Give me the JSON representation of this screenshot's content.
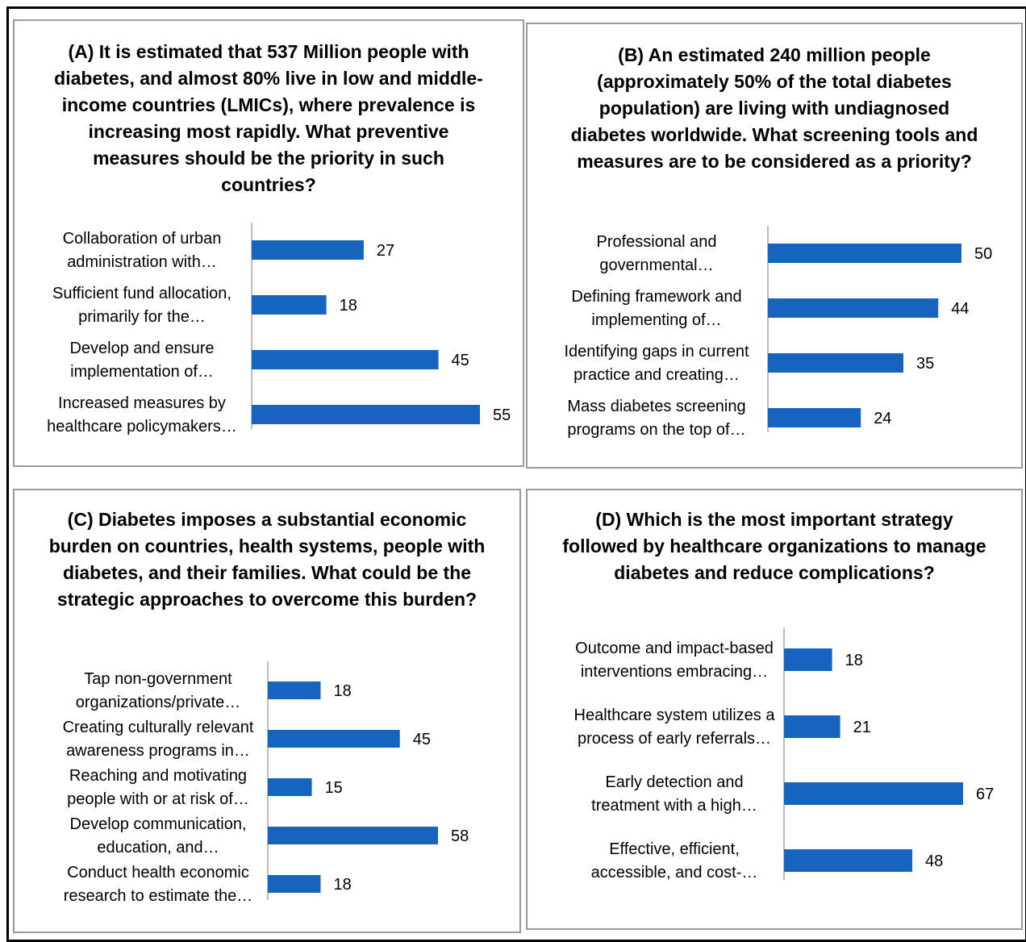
{
  "colors": {
    "bar": "#1565c0",
    "axis": "#bdbdbd",
    "border": "#000000",
    "panel_border": "#9a9a9a"
  },
  "chart_data": [
    {
      "type": "bar",
      "orientation": "horizontal",
      "title": "(A) It is estimated that 537 Million people with diabetes, and almost 80% live in low and middle-income countries (LMICs), where prevalence is increasing most rapidly. What preventive measures should be the priority in such countries?",
      "categories": [
        "Collaboration of urban administration with…",
        "Sufficient fund allocation, primarily for the…",
        "Develop and ensure implementation of…",
        "Increased measures by healthcare policymakers…"
      ],
      "category_lines": [
        [
          "Collaboration of urban",
          "administration with…"
        ],
        [
          "Sufficient fund allocation,",
          "primarily for the…"
        ],
        [
          "Develop and ensure",
          "implementation of…"
        ],
        [
          "Increased measures by",
          "healthcare policymakers…"
        ]
      ],
      "values": [
        27,
        18,
        45,
        55
      ],
      "xlim": [
        0,
        55
      ]
    },
    {
      "type": "bar",
      "orientation": "horizontal",
      "title": "(B) An estimated 240 million people (approximately 50% of the total diabetes population) are living with undiagnosed diabetes worldwide. What screening tools and measures are to be considered as a priority?",
      "categories": [
        "Professional and governmental…",
        "Defining framework and implementing of…",
        "Identifying gaps in current practice and creating…",
        "Mass diabetes screening programs on the top of…"
      ],
      "category_lines": [
        [
          "Professional and",
          "governmental…"
        ],
        [
          "Defining framework and",
          "implementing of…"
        ],
        [
          "Identifying gaps in current",
          "practice and creating…"
        ],
        [
          "Mass diabetes screening",
          "programs on the top of…"
        ]
      ],
      "values": [
        50,
        44,
        35,
        24
      ],
      "xlim": [
        0,
        50
      ]
    },
    {
      "type": "bar",
      "orientation": "horizontal",
      "title": "(C) Diabetes imposes a substantial economic burden on countries, health systems, people with diabetes, and their families. What could be the strategic approaches to overcome this burden?",
      "categories": [
        "Tap non-government organizations/private…",
        "Creating culturally relevant awareness programs in…",
        "Reaching and motivating people with or at risk of…",
        "Develop communication, education, and…",
        "Conduct health economic research to estimate the…"
      ],
      "category_lines": [
        [
          "Tap non-government",
          "organizations/private…"
        ],
        [
          "Creating culturally relevant",
          "awareness programs in…"
        ],
        [
          "Reaching and motivating",
          "people with or at risk of…"
        ],
        [
          "Develop communication,",
          "education, and…"
        ],
        [
          "Conduct health economic",
          "research to estimate the…"
        ]
      ],
      "values": [
        18,
        45,
        15,
        58,
        18
      ],
      "xlim": [
        0,
        58
      ]
    },
    {
      "type": "bar",
      "orientation": "horizontal",
      "title": "(D) Which is the most important strategy followed by healthcare organizations to manage diabetes and reduce complications?",
      "categories": [
        "Outcome and impact-based interventions embracing…",
        "Healthcare system utilizes a process of early referrals…",
        "Early detection and treatment with a high…",
        "Effective, efficient, accessible, and cost-…"
      ],
      "category_lines": [
        [
          "Outcome and impact-based",
          "interventions embracing…"
        ],
        [
          "Healthcare system utilizes a",
          "process of early referrals…"
        ],
        [
          "Early detection and",
          "treatment with a high…"
        ],
        [
          "Effective, efficient,",
          "accessible, and cost-…"
        ]
      ],
      "values": [
        18,
        21,
        67,
        48
      ],
      "xlim": [
        0,
        67
      ]
    }
  ]
}
